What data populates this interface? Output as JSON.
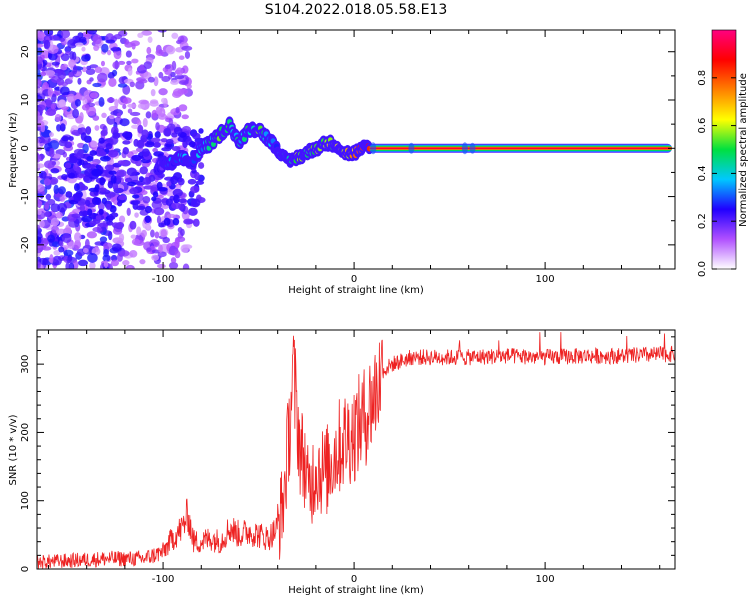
{
  "title": "S104.2022.018.05.58.E13",
  "chart_data": [
    {
      "type": "heatmap",
      "xlabel": "Height of straight line (km)",
      "ylabel": "Frequency (Hz)",
      "xlim": [
        -166,
        168
      ],
      "ylim": [
        -25,
        24.5
      ],
      "xticks": [
        -100,
        0,
        100
      ],
      "yticks": [
        -20,
        -10,
        0,
        10,
        20
      ],
      "grid": false,
      "colorbar": {
        "label": "Normalized spectral amplitude",
        "range": [
          0,
          1
        ],
        "ticks": [
          "0.0",
          "0.2",
          "0.4",
          "0.6",
          "0.8"
        ],
        "tick_values": [
          0.0,
          0.2,
          0.4,
          0.6,
          0.8
        ],
        "colors": [
          "#ffffff",
          "#b050ff",
          "#2000ff",
          "#00c8ff",
          "#00e040",
          "#ffff00",
          "#ff8000",
          "#ff0000",
          "#ff0080"
        ]
      },
      "ridge": {
        "x": [
          -103,
          -95,
          -90,
          -85,
          -80,
          -75,
          -70,
          -65,
          -60,
          -55,
          -50,
          -45,
          -40,
          -35,
          -30,
          -25,
          -20,
          -15,
          -10,
          -5,
          0,
          5,
          10,
          30,
          60,
          100,
          130,
          166
        ],
        "y": [
          -4,
          -3,
          -2,
          -3,
          0,
          1,
          3,
          5,
          1,
          4,
          4,
          2,
          0,
          -3,
          -2,
          -1,
          0,
          1,
          1,
          -1,
          -1,
          0,
          0,
          0,
          0,
          0,
          0,
          0
        ],
        "amplitude": [
          0.2,
          0.3,
          0.35,
          0.3,
          0.35,
          0.45,
          0.5,
          0.45,
          0.4,
          0.45,
          0.5,
          0.35,
          0.3,
          0.45,
          0.55,
          0.5,
          0.55,
          0.6,
          0.55,
          0.6,
          0.7,
          0.8,
          0.95,
          0.95,
          0.9,
          0.95,
          0.95,
          0.95
        ]
      }
    },
    {
      "type": "line",
      "xlabel": "Height of straight line (km)",
      "ylabel": "SNR (10 * v/v)",
      "xlim": [
        -166,
        168
      ],
      "ylim": [
        0,
        350
      ],
      "xticks": [
        -100,
        0,
        100
      ],
      "yticks": [
        0,
        100,
        200,
        300
      ],
      "grid": false,
      "series": [
        {
          "color": "#ee2222",
          "x": [
            -166,
            -150,
            -130,
            -110,
            -100,
            -95,
            -90,
            -87,
            -84,
            -80,
            -75,
            -70,
            -65,
            -60,
            -55,
            -50,
            -45,
            -40,
            -37,
            -34,
            -32,
            -30,
            -28,
            -26,
            -24,
            -20,
            -15,
            -10,
            -5,
            0,
            5,
            10,
            15,
            20,
            25,
            30,
            40,
            60,
            80,
            100,
            120,
            140,
            160,
            168
          ],
          "y": [
            10,
            12,
            15,
            15,
            25,
            45,
            60,
            80,
            40,
            40,
            45,
            40,
            60,
            50,
            55,
            50,
            45,
            60,
            100,
            200,
            290,
            230,
            170,
            160,
            110,
            150,
            140,
            170,
            190,
            200,
            220,
            250,
            290,
            300,
            305,
            310,
            310,
            310,
            312,
            310,
            312,
            312,
            314,
            315
          ]
        }
      ]
    }
  ]
}
